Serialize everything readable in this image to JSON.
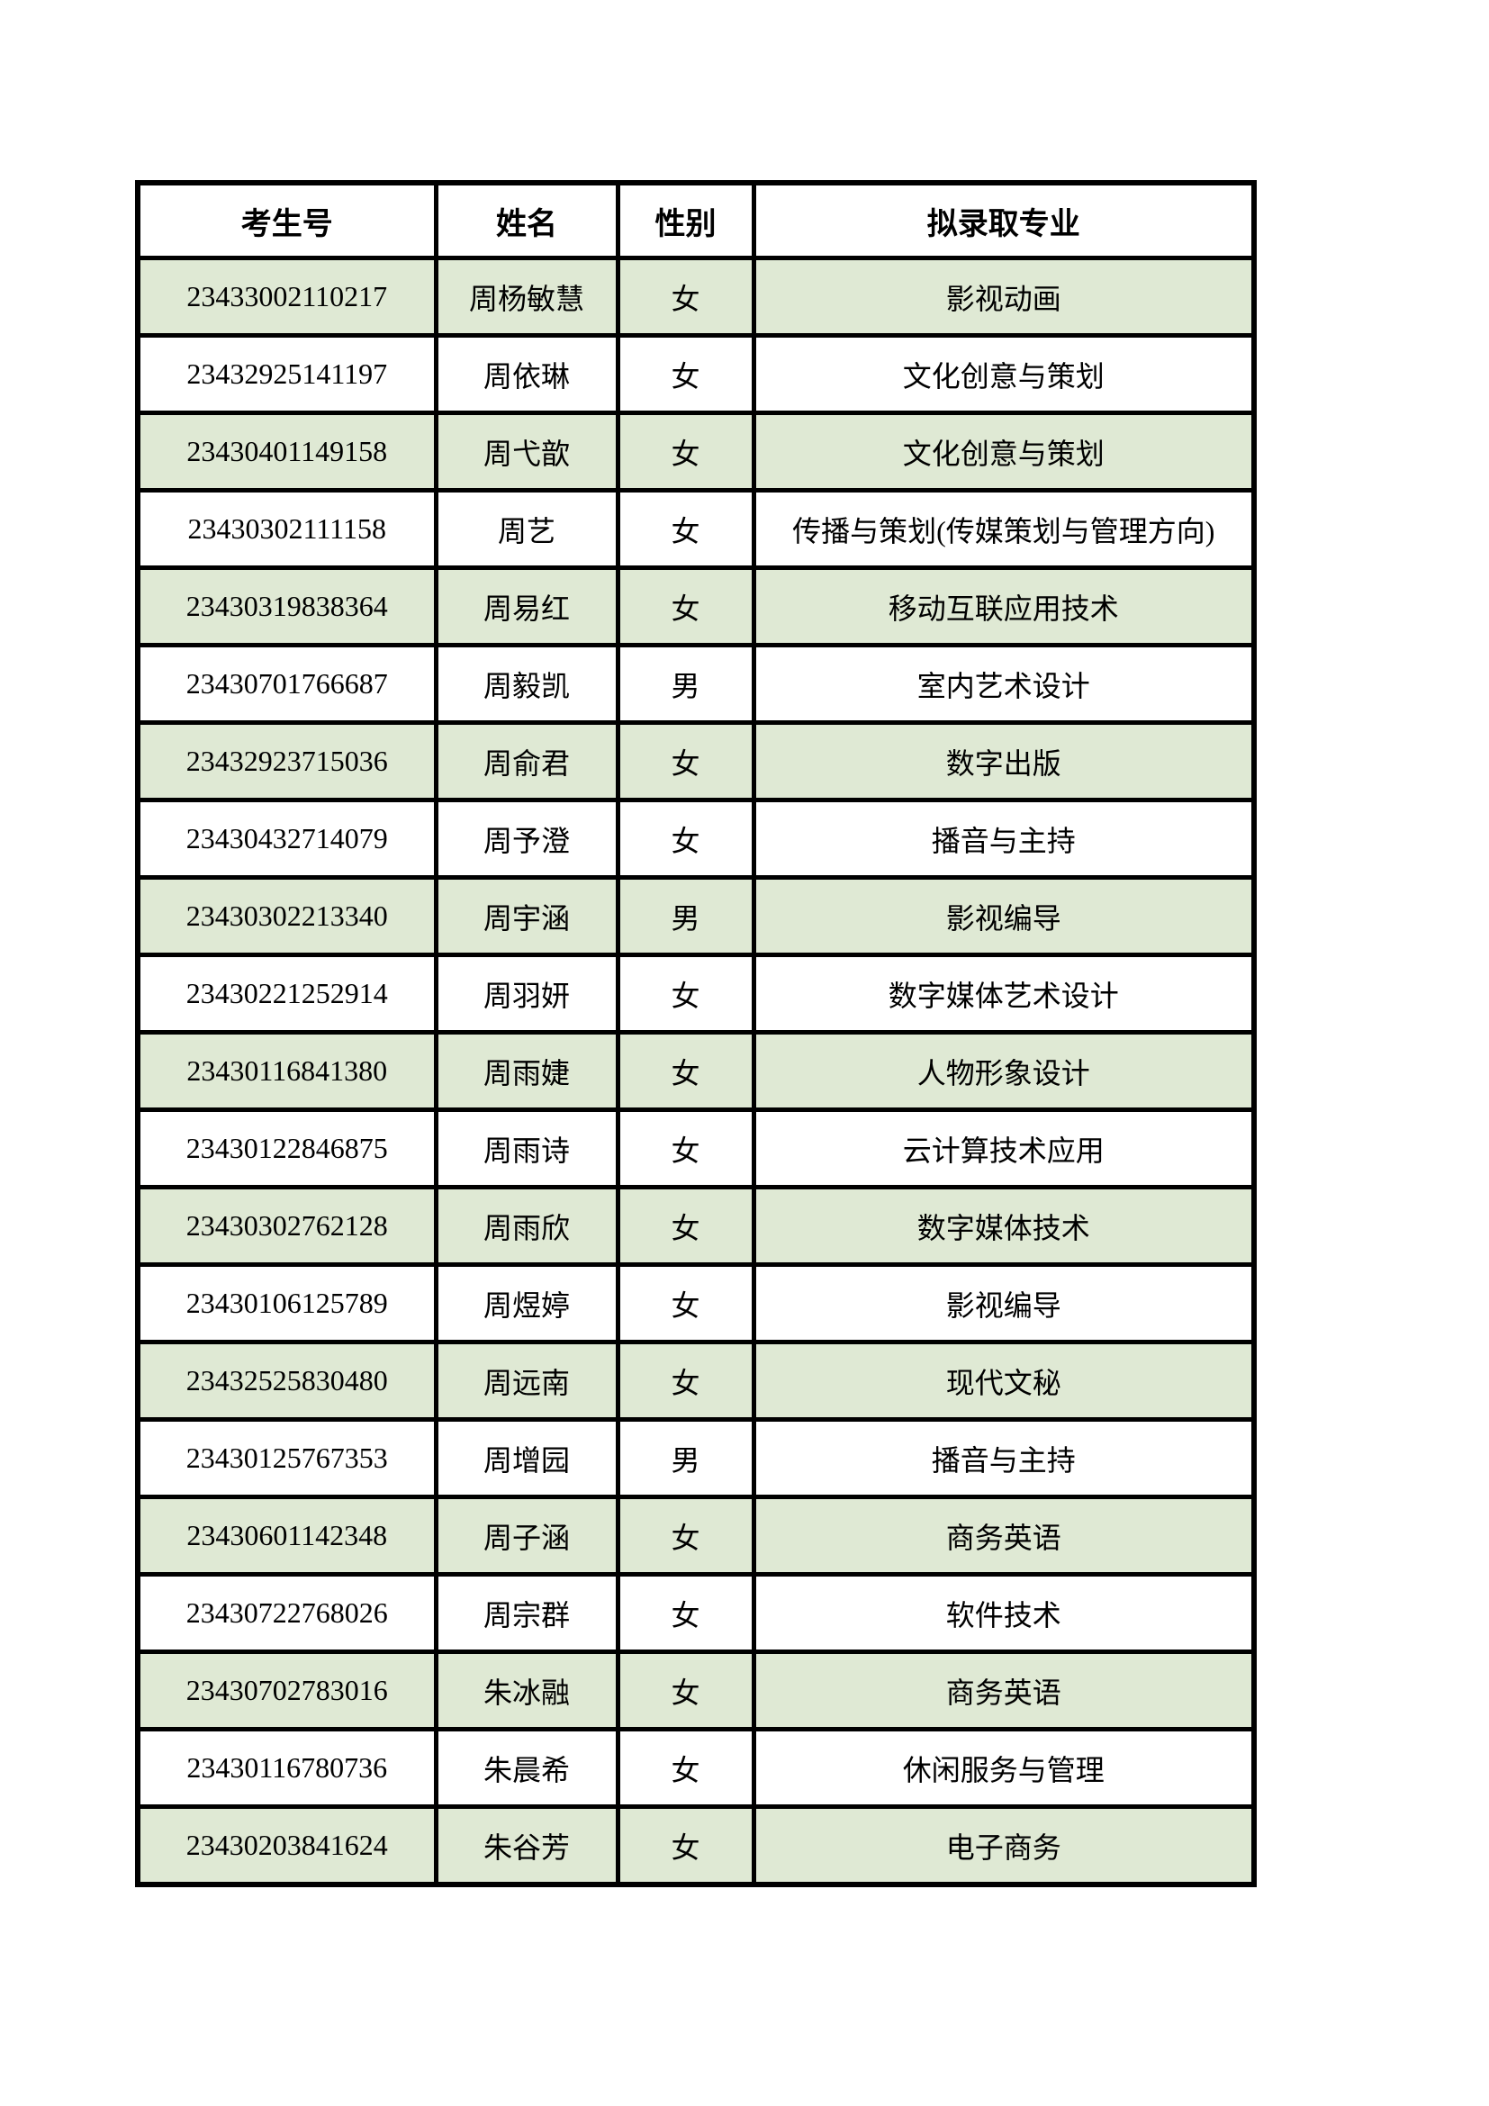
{
  "table": {
    "headers": [
      "考生号",
      "姓名",
      "性别",
      "拟录取专业"
    ],
    "rows": [
      {
        "candidate_id": "23433002110217",
        "name": "周杨敏慧",
        "gender": "女",
        "major": "影视动画"
      },
      {
        "candidate_id": "23432925141197",
        "name": "周依琳",
        "gender": "女",
        "major": "文化创意与策划"
      },
      {
        "candidate_id": "23430401149158",
        "name": "周弋歆",
        "gender": "女",
        "major": "文化创意与策划"
      },
      {
        "candidate_id": "23430302111158",
        "name": "周艺",
        "gender": "女",
        "major": "传播与策划(传媒策划与管理方向)"
      },
      {
        "candidate_id": "23430319838364",
        "name": "周易红",
        "gender": "女",
        "major": "移动互联应用技术"
      },
      {
        "candidate_id": "23430701766687",
        "name": "周毅凯",
        "gender": "男",
        "major": "室内艺术设计"
      },
      {
        "candidate_id": "23432923715036",
        "name": "周俞君",
        "gender": "女",
        "major": "数字出版"
      },
      {
        "candidate_id": "23430432714079",
        "name": "周予澄",
        "gender": "女",
        "major": "播音与主持"
      },
      {
        "candidate_id": "23430302213340",
        "name": "周宇涵",
        "gender": "男",
        "major": "影视编导"
      },
      {
        "candidate_id": "23430221252914",
        "name": "周羽妍",
        "gender": "女",
        "major": "数字媒体艺术设计"
      },
      {
        "candidate_id": "23430116841380",
        "name": "周雨婕",
        "gender": "女",
        "major": "人物形象设计"
      },
      {
        "candidate_id": "23430122846875",
        "name": "周雨诗",
        "gender": "女",
        "major": "云计算技术应用"
      },
      {
        "candidate_id": "23430302762128",
        "name": "周雨欣",
        "gender": "女",
        "major": "数字媒体技术"
      },
      {
        "candidate_id": "23430106125789",
        "name": "周煜婷",
        "gender": "女",
        "major": "影视编导"
      },
      {
        "candidate_id": "23432525830480",
        "name": "周远南",
        "gender": "女",
        "major": "现代文秘"
      },
      {
        "candidate_id": "23430125767353",
        "name": "周增园",
        "gender": "男",
        "major": "播音与主持"
      },
      {
        "candidate_id": "23430601142348",
        "name": "周子涵",
        "gender": "女",
        "major": "商务英语"
      },
      {
        "candidate_id": "23430722768026",
        "name": "周宗群",
        "gender": "女",
        "major": "软件技术"
      },
      {
        "candidate_id": "23430702783016",
        "name": "朱冰融",
        "gender": "女",
        "major": "商务英语"
      },
      {
        "candidate_id": "23430116780736",
        "name": "朱晨希",
        "gender": "女",
        "major": "休闲服务与管理"
      },
      {
        "candidate_id": "23430203841624",
        "name": "朱谷芳",
        "gender": "女",
        "major": "电子商务"
      }
    ]
  },
  "colors": {
    "row_alt_green": "#dfe9d4",
    "row_white": "#ffffff",
    "border": "#000000",
    "page_background": "#ffffff"
  }
}
